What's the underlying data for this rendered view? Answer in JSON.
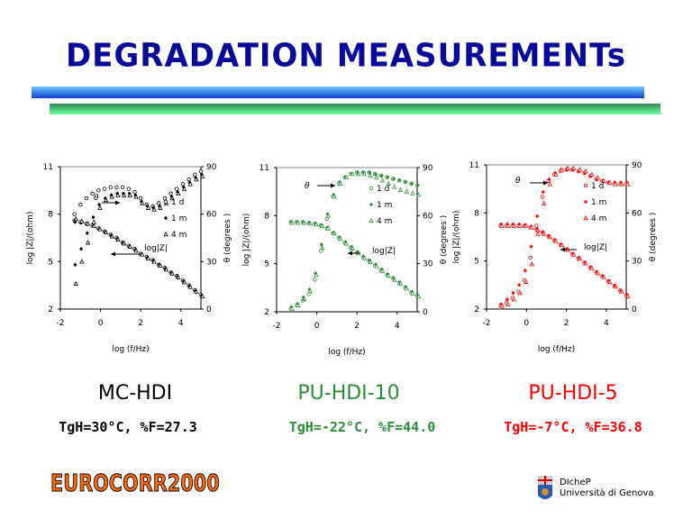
{
  "title": "DEGRADATION MEASUREMENTs",
  "footer": {
    "conference": "EUROCORR2000",
    "dept": "DIcheP",
    "university": "Università di Genova"
  },
  "samples": [
    {
      "name": "MC-HDI",
      "conditions": "TgH=30°C, %F=27.3",
      "color": "#000000"
    },
    {
      "name": "PU-HDI-10",
      "conditions": "TgH=-22°C, %F=44.0",
      "color": "#2e8b3a"
    },
    {
      "name": "PU-HDI-5",
      "conditions": "TgH=-7°C, %F=36.8",
      "color": "#ff0000"
    }
  ],
  "chart_data": [
    {
      "type": "scatter",
      "title": "MC-HDI",
      "xlabel": "log (f/Hz)",
      "ylabel": "log |Z|/(ohm)",
      "y2label": "θ (degrees )",
      "xlim": [
        -2,
        5
      ],
      "ylim": [
        2,
        11
      ],
      "y2lim": [
        0,
        90
      ],
      "xticks": [
        "-2",
        "0",
        "2",
        "4"
      ],
      "yticks": [
        "2",
        "5",
        "8",
        "11"
      ],
      "y2ticks": [
        "0",
        "30",
        "60",
        "90"
      ],
      "legend": [
        "1 d",
        "1 m",
        "4 m"
      ],
      "annotations": {
        "theta": "θ",
        "logz": "log|Z|"
      },
      "x": [
        -1.3,
        -1,
        -0.7,
        -0.4,
        -0.1,
        0.2,
        0.5,
        0.8,
        1.1,
        1.4,
        1.7,
        2,
        2.3,
        2.6,
        2.9,
        3.2,
        3.5,
        3.8,
        4.1,
        4.4,
        4.7,
        5
      ],
      "series": [
        {
          "name": "1 d",
          "logz": [
            7.6,
            7.5,
            7.4,
            7.3,
            7.1,
            6.9,
            6.7,
            6.5,
            6.2,
            6.0,
            5.8,
            5.5,
            5.3,
            5.1,
            4.8,
            4.6,
            4.3,
            4.1,
            3.8,
            3.5,
            3.2,
            2.9
          ],
          "theta": [
            60,
            66,
            70,
            73,
            75,
            76,
            77,
            77,
            77,
            76,
            74,
            70,
            66,
            65,
            67,
            70,
            73,
            76,
            79,
            82,
            85,
            87
          ]
        },
        {
          "name": "1 m",
          "logz": [
            7.5,
            7.45,
            7.35,
            7.25,
            7.05,
            6.85,
            6.65,
            6.45,
            6.2,
            5.95,
            5.75,
            5.45,
            5.25,
            5.05,
            4.8,
            4.55,
            4.3,
            4.05,
            3.75,
            3.45,
            3.15,
            2.85
          ],
          "theta": [
            28,
            38,
            48,
            58,
            66,
            70,
            72,
            73,
            73,
            73,
            72,
            68,
            65,
            64,
            65,
            68,
            71,
            74,
            77,
            80,
            83,
            85
          ]
        },
        {
          "name": "4 m",
          "logz": [
            7.7,
            7.55,
            7.4,
            7.25,
            7.05,
            6.85,
            6.6,
            6.4,
            6.15,
            5.95,
            5.7,
            5.45,
            5.2,
            5.0,
            4.75,
            4.5,
            4.25,
            4.0,
            3.7,
            3.4,
            3.1,
            2.8
          ],
          "theta": [
            16,
            30,
            42,
            55,
            64,
            69,
            71,
            72,
            72,
            72,
            71,
            67,
            64,
            63,
            64,
            67,
            70,
            73,
            76,
            79,
            82,
            84
          ]
        }
      ]
    },
    {
      "type": "scatter",
      "title": "PU-HDI-10",
      "xlabel": "log (f/Hz)",
      "ylabel": "log |Z|/(ohm)",
      "y2label": "θ (degrees )",
      "xlim": [
        -2,
        5
      ],
      "ylim": [
        2,
        11
      ],
      "y2lim": [
        0,
        90
      ],
      "xticks": [
        "-2",
        "0",
        "2",
        "4"
      ],
      "yticks": [
        "2",
        "5",
        "8",
        "11"
      ],
      "y2ticks": [
        "0",
        "30",
        "60",
        "90"
      ],
      "legend": [
        "1 d",
        "1 m",
        "4 m"
      ],
      "annotations": {
        "theta": "θ",
        "logz": "log|Z|"
      },
      "x": [
        -1.3,
        -1,
        -0.7,
        -0.4,
        -0.1,
        0.2,
        0.5,
        0.8,
        1.1,
        1.4,
        1.7,
        2,
        2.3,
        2.6,
        2.9,
        3.2,
        3.5,
        3.8,
        4.1,
        4.4,
        4.7,
        5
      ],
      "series": [
        {
          "name": "1 d",
          "logz": [
            7.6,
            7.6,
            7.6,
            7.55,
            7.5,
            7.4,
            7.2,
            6.9,
            6.6,
            6.3,
            6.0,
            5.7,
            5.4,
            5.2,
            4.9,
            4.6,
            4.3,
            4.1,
            3.8,
            3.5,
            3.2,
            3.0
          ],
          "theta": [
            2,
            4,
            7,
            11,
            20,
            38,
            58,
            72,
            80,
            84,
            86,
            87,
            87,
            87,
            86,
            85,
            84,
            83,
            82,
            81,
            80,
            79
          ]
        },
        {
          "name": "1 m",
          "logz": [
            7.6,
            7.6,
            7.6,
            7.55,
            7.5,
            7.4,
            7.25,
            6.95,
            6.65,
            6.35,
            6.05,
            5.75,
            5.45,
            5.2,
            4.95,
            4.65,
            4.35,
            4.1,
            3.85,
            3.55,
            3.25,
            3.0
          ],
          "theta": [
            3,
            5,
            9,
            14,
            24,
            42,
            61,
            73,
            81,
            84,
            86,
            87,
            87,
            87,
            86,
            85,
            84,
            83,
            82,
            81,
            80,
            79
          ]
        },
        {
          "name": "4 m",
          "logz": [
            7.55,
            7.55,
            7.55,
            7.5,
            7.45,
            7.35,
            7.2,
            6.9,
            6.55,
            6.25,
            5.95,
            5.65,
            5.35,
            5.1,
            4.85,
            4.55,
            4.25,
            4.0,
            3.75,
            3.45,
            3.15,
            2.95
          ],
          "theta": [
            2,
            4,
            8,
            13,
            23,
            40,
            60,
            72,
            80,
            84,
            86,
            86,
            86,
            85,
            84,
            82,
            80,
            78,
            76,
            75,
            74,
            73
          ]
        }
      ]
    },
    {
      "type": "scatter",
      "title": "PU-HDI-5",
      "xlabel": "log (f/Hz)",
      "ylabel": "log |Z|/(ohm)",
      "y2label": "θ (degrees )",
      "xlim": [
        -2,
        5
      ],
      "ylim": [
        2,
        11
      ],
      "y2lim": [
        0,
        90
      ],
      "xticks": [
        "-2",
        "0",
        "2",
        "4"
      ],
      "yticks": [
        "2",
        "5",
        "8",
        "11"
      ],
      "y2ticks": [
        "0",
        "30",
        "60",
        "90"
      ],
      "legend": [
        "1 d",
        "1 m",
        "4 m"
      ],
      "annotations": {
        "theta": "θ",
        "logz": "log|Z|"
      },
      "x": [
        -1.3,
        -1,
        -0.7,
        -0.4,
        -0.1,
        0.2,
        0.5,
        0.8,
        1.1,
        1.4,
        1.7,
        2,
        2.3,
        2.6,
        2.9,
        3.2,
        3.5,
        3.8,
        4.1,
        4.4,
        4.7,
        5
      ],
      "series": [
        {
          "name": "1 d",
          "logz": [
            7.2,
            7.2,
            7.2,
            7.2,
            7.2,
            7.1,
            6.95,
            6.8,
            6.55,
            6.3,
            6.0,
            5.7,
            5.45,
            5.15,
            4.9,
            4.6,
            4.3,
            4.05,
            3.75,
            3.45,
            3.15,
            2.85
          ],
          "theta": [
            2,
            4,
            7,
            11,
            18,
            32,
            52,
            70,
            80,
            84,
            86,
            87,
            87,
            86,
            85,
            83,
            81,
            80,
            79,
            78,
            78,
            78
          ]
        },
        {
          "name": "1 m",
          "logz": [
            7.3,
            7.3,
            7.3,
            7.3,
            7.25,
            7.15,
            7.0,
            6.8,
            6.55,
            6.3,
            6.05,
            5.75,
            5.45,
            5.2,
            4.9,
            4.6,
            4.3,
            4.05,
            3.75,
            3.45,
            3.15,
            2.9
          ],
          "theta": [
            3,
            6,
            10,
            15,
            24,
            39,
            58,
            73,
            81,
            85,
            87,
            87,
            87,
            86,
            85,
            83,
            81,
            80,
            79,
            79,
            79,
            79
          ]
        },
        {
          "name": "4 m",
          "logz": [
            7.2,
            7.2,
            7.2,
            7.2,
            7.2,
            7.1,
            6.9,
            6.7,
            6.5,
            6.25,
            6.0,
            5.7,
            5.4,
            5.15,
            4.85,
            4.55,
            4.25,
            4.0,
            3.7,
            3.4,
            3.1,
            2.8
          ],
          "theta": [
            2,
            3,
            6,
            10,
            17,
            28,
            47,
            66,
            78,
            84,
            87,
            88,
            88,
            87,
            86,
            84,
            82,
            80,
            79,
            78,
            78,
            78
          ]
        }
      ]
    }
  ]
}
